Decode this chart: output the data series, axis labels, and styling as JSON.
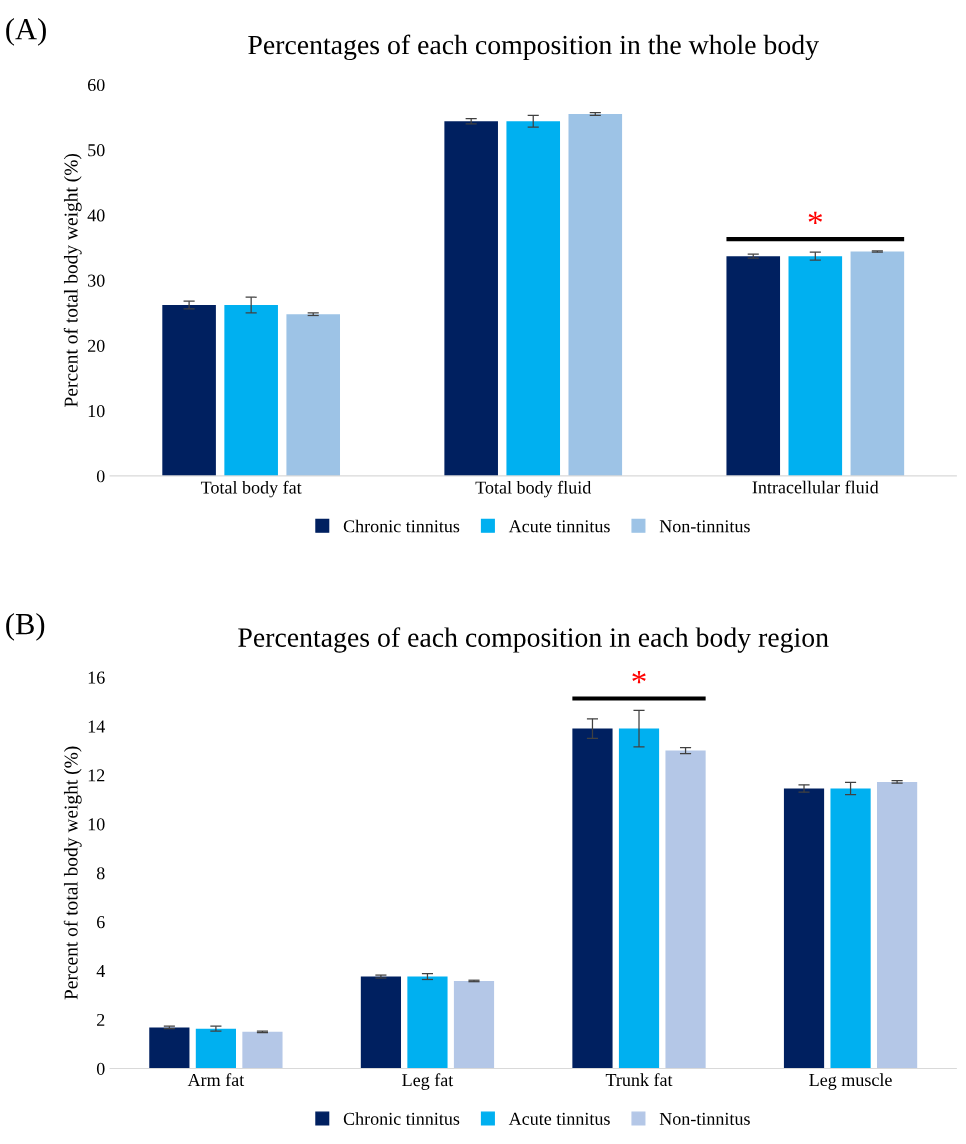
{
  "chart_data": [
    {
      "type": "bar",
      "title": "Percentages of each composition in the whole body",
      "ylabel": "Percent of total body weight (%)",
      "categories": [
        "Total body fat",
        "Total body fluid",
        "Intracellular fluid"
      ],
      "series": [
        {
          "name": "Chronic tinnitus",
          "color": "#002060",
          "values": [
            26.2,
            54.4,
            33.7
          ],
          "errors": [
            0.6,
            0.4,
            0.3
          ]
        },
        {
          "name": "Acute tinnitus",
          "color": "#00b0f0",
          "values": [
            26.2,
            54.4,
            33.7
          ],
          "errors": [
            1.2,
            0.9,
            0.6
          ]
        },
        {
          "name": "Non-tinnitus",
          "color": "#9dc3e6",
          "values": [
            24.8,
            55.5,
            34.4
          ],
          "errors": [
            0.2,
            0.2,
            0.1
          ]
        }
      ],
      "ylim": [
        0,
        60
      ],
      "yticks": [
        0,
        10,
        20,
        30,
        40,
        50,
        60
      ],
      "grid": false,
      "legend": "bottom",
      "annotations": [
        "(A)",
        "*"
      ]
    },
    {
      "type": "bar",
      "title": "Percentages of each composition in each body region",
      "ylabel": "Percent of total body weight (%)",
      "categories": [
        "Arm fat",
        "Leg fat",
        "Trunk fat",
        "Leg muscle"
      ],
      "series": [
        {
          "name": "Chronic tinnitus",
          "color": "#002060",
          "values": [
            1.68,
            3.76,
            13.9,
            11.45
          ],
          "errors": [
            0.05,
            0.06,
            0.4,
            0.15
          ]
        },
        {
          "name": "Acute tinnitus",
          "color": "#00b0f0",
          "values": [
            1.63,
            3.76,
            13.9,
            11.45
          ],
          "errors": [
            0.1,
            0.12,
            0.75,
            0.25
          ]
        },
        {
          "name": "Non-tinnitus",
          "color": "#b4c7e7",
          "values": [
            1.5,
            3.58,
            13.0,
            11.72
          ],
          "errors": [
            0.03,
            0.03,
            0.12,
            0.05
          ]
        }
      ],
      "ylim": [
        0,
        16
      ],
      "yticks": [
        0,
        2,
        4,
        6,
        8,
        10,
        12,
        14,
        16
      ],
      "grid": false,
      "legend": "bottom",
      "annotations": [
        "(B)",
        "*"
      ]
    }
  ]
}
